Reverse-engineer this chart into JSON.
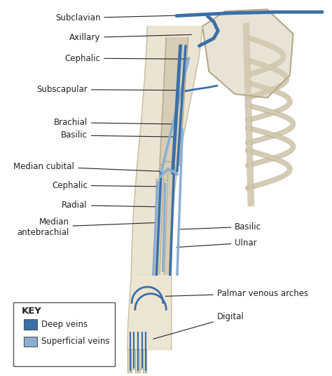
{
  "bg_color": "#ffffff",
  "deep_vein_color": "#3a6fa8",
  "superficial_vein_color": "#8aaed4",
  "bone_color": "#d6ccb4",
  "bone_outline": "#b5a98a",
  "skin_color": "#e8dfc8",
  "line_color": "#222222",
  "text_color": "#222222",
  "label_fontsize": 8.5,
  "key_title": "KEY",
  "key_items": [
    {
      "label": "Deep veins",
      "color": "#3a6fa8"
    },
    {
      "label": "Superficial veins",
      "color": "#8aaed4"
    }
  ]
}
